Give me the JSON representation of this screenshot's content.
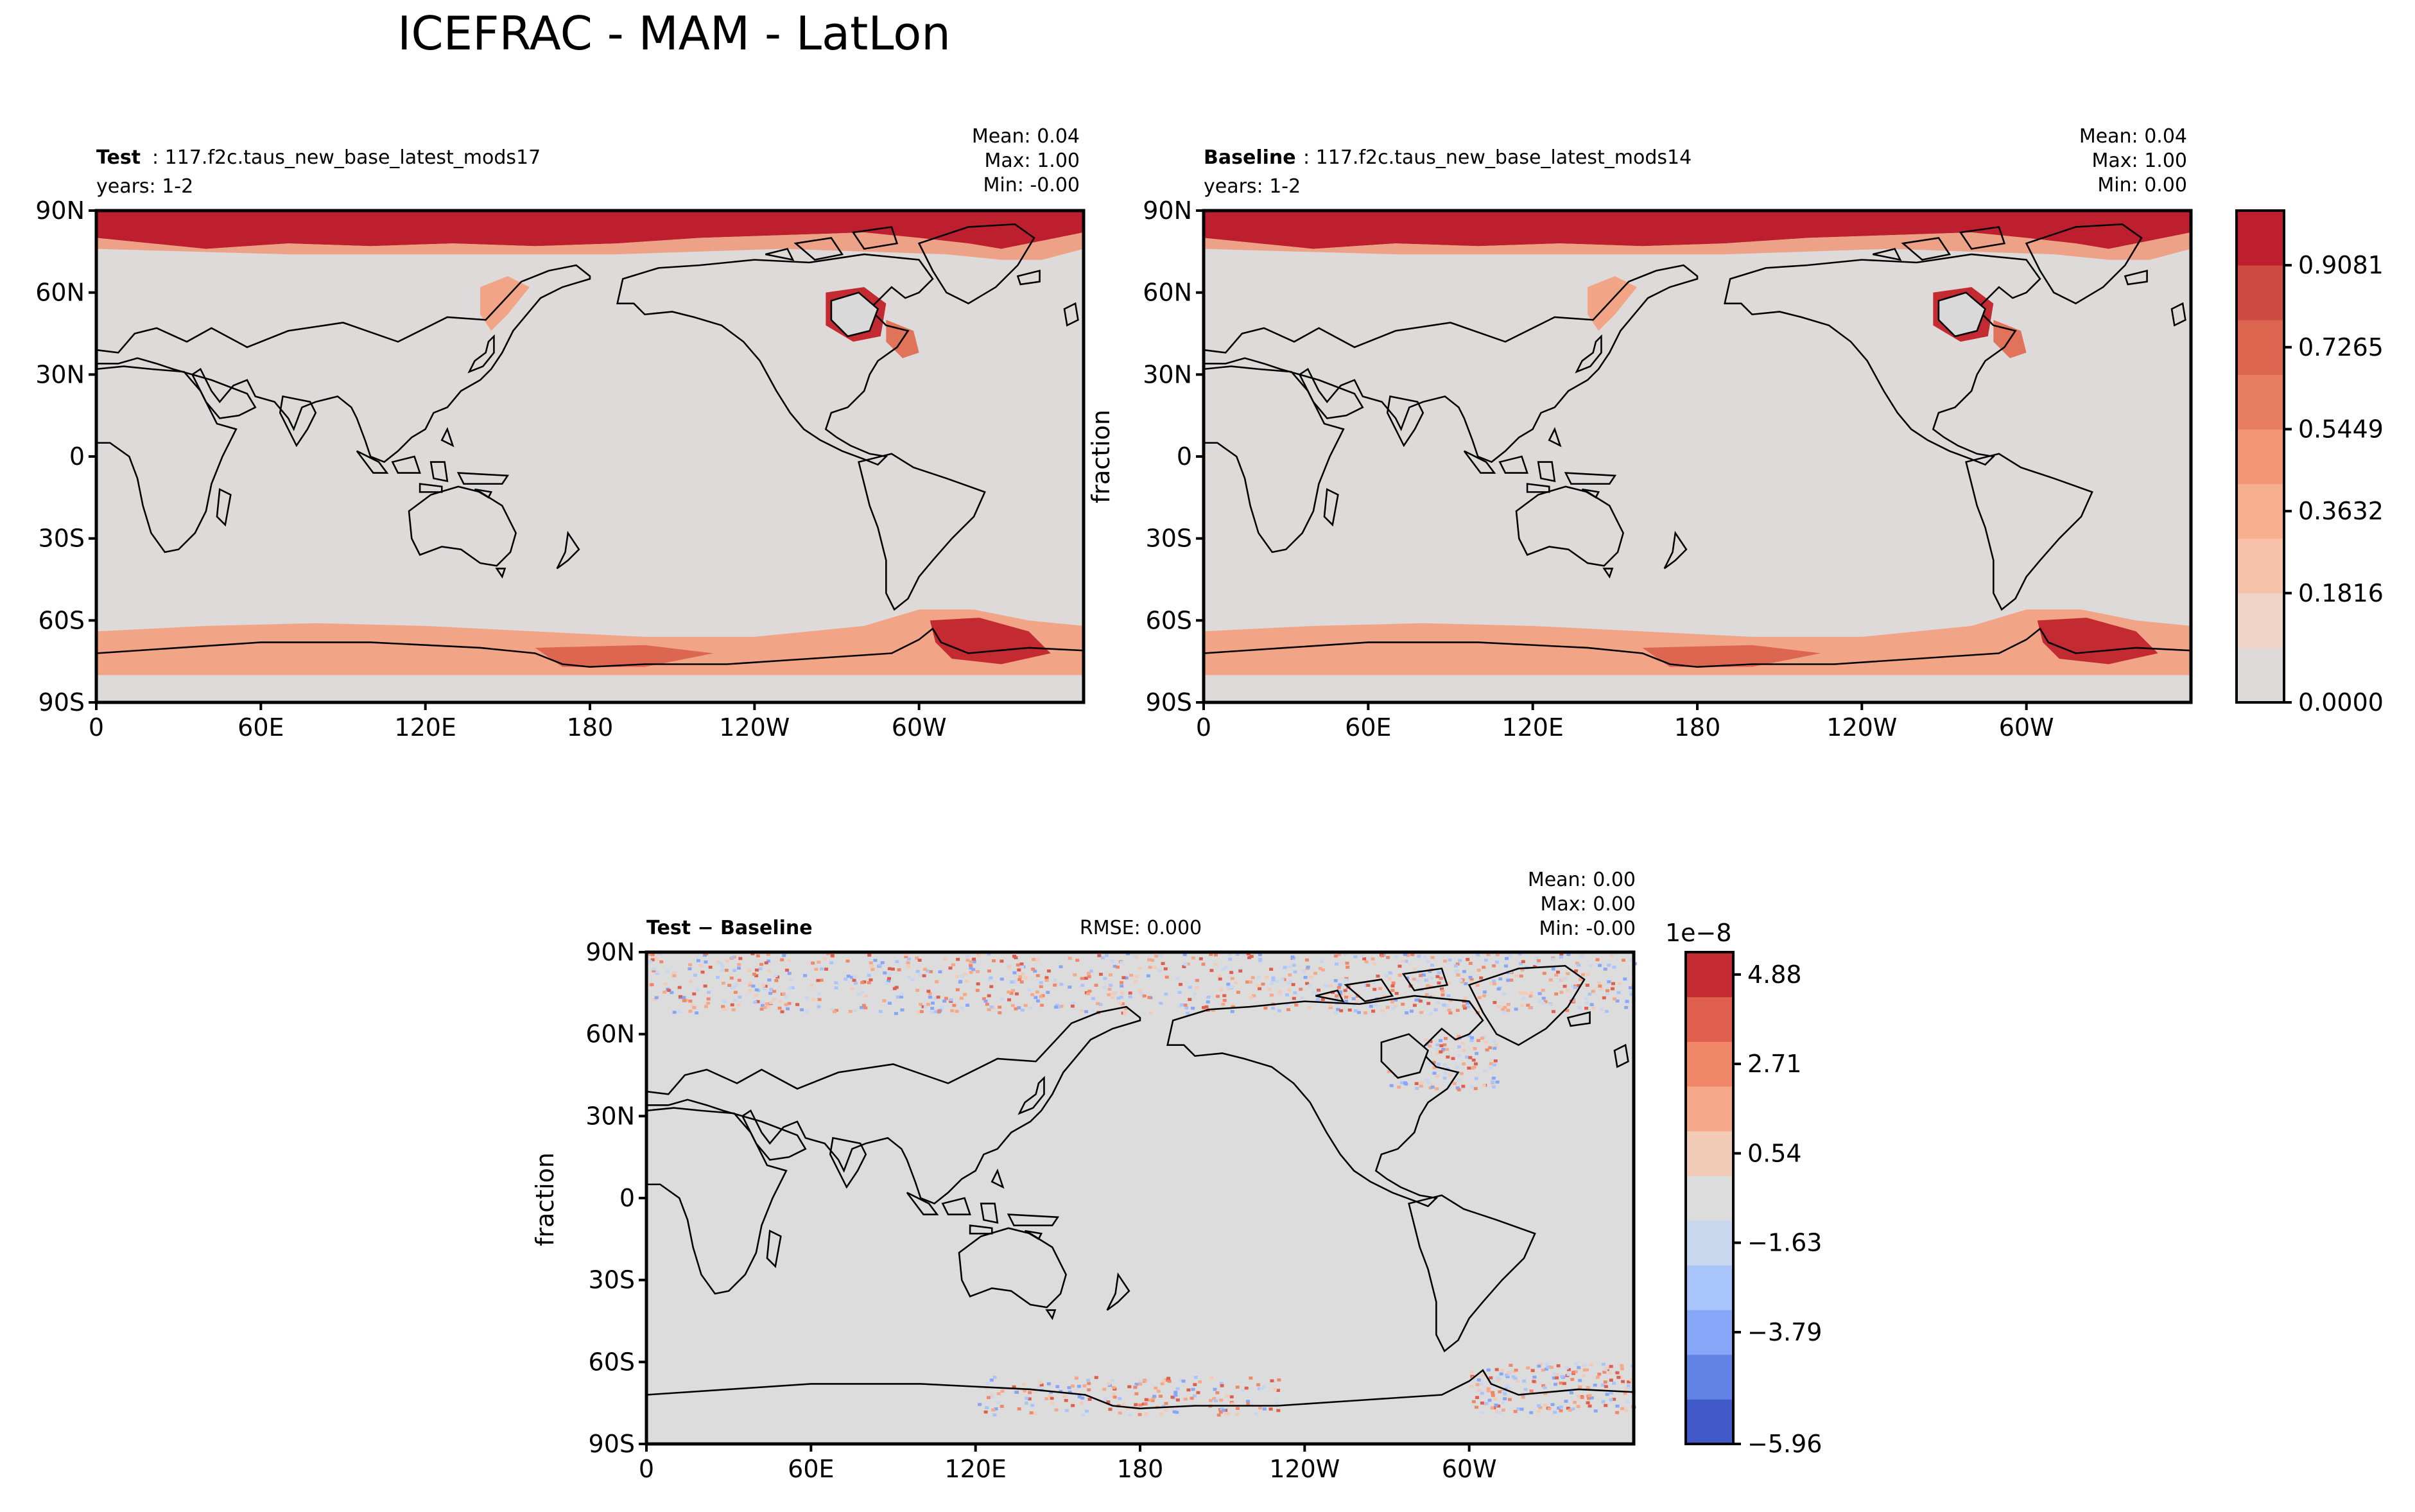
{
  "figure_title": "ICEFRAC - MAM - LatLon",
  "panels": [
    {
      "id": "test",
      "label_bold": "Test",
      "label_rest": ": 117.f2c.taus_new_base_latest_mods17",
      "years": "years: 1-2",
      "stats": [
        "Mean:  0.04",
        "Max:  1.00",
        "Min: -0.00"
      ],
      "ylabel": ""
    },
    {
      "id": "baseline",
      "label_bold": "Baseline",
      "label_rest": ": 117.f2c.taus_new_base_latest_mods14",
      "years": "years: 1-2",
      "stats": [
        "Mean:  0.04",
        "Max:  1.00",
        "Min:  0.00"
      ],
      "ylabel": "fraction"
    },
    {
      "id": "diff",
      "label_bold": "Test − Baseline",
      "label_rest": "",
      "rmse": "RMSE: 0.000",
      "stats": [
        "Mean:  0.00",
        "Max:  0.00",
        "Min: -0.00"
      ],
      "ylabel": "fraction"
    }
  ],
  "lat_ticks": [
    "90N",
    "60N",
    "30N",
    "0",
    "30S",
    "60S",
    "90S"
  ],
  "lon_ticks": [
    "0",
    "60E",
    "120E",
    "180",
    "120W",
    "60W"
  ],
  "colorbar_main": {
    "ticks": [
      "0.9081",
      "0.7265",
      "0.5449",
      "0.3632",
      "0.1816",
      "0.0000"
    ],
    "colors": [
      "#dedad9",
      "#f0d4c8",
      "#f6c2a9",
      "#f7ae8f",
      "#f39676",
      "#e87e61",
      "#dc6650",
      "#cc4c42",
      "#bd1f2e"
    ]
  },
  "colorbar_diff": {
    "exponent": "1e−8",
    "ticks": [
      "4.88",
      "2.71",
      "0.54",
      "−1.63",
      "−3.79",
      "−5.96"
    ],
    "colors": [
      "#4259c9",
      "#6283e6",
      "#86a6f7",
      "#a8c4fb",
      "#c8d6ee",
      "#dcdcdc",
      "#f2cbb7",
      "#f6a98a",
      "#ef8768",
      "#de5f4d",
      "#c42a31"
    ]
  },
  "chart_data": [
    {
      "type": "heatmap",
      "title": "Test: 117.f2c.taus_new_base_latest_mods17",
      "variable": "ICEFRAC",
      "season": "MAM",
      "units": "",
      "xlim": [
        0,
        360
      ],
      "ylim": [
        -90,
        90
      ],
      "mean": 0.04,
      "max": 1.0,
      "min": -0.0,
      "color_levels": [
        0.0,
        0.1816,
        0.3632,
        0.5449,
        0.7265,
        0.9081
      ],
      "features": [
        "Arctic ocean ice fraction ~1.0 poleward of ~75N",
        "Hudson Bay and Labrador ice ~1.0",
        "Southern ocean ice band near 65-75S, max in Weddell Sea"
      ]
    },
    {
      "type": "heatmap",
      "title": "Baseline: 117.f2c.taus_new_base_latest_mods14",
      "variable": "ICEFRAC",
      "season": "MAM",
      "units": "fraction",
      "xlim": [
        0,
        360
      ],
      "ylim": [
        -90,
        90
      ],
      "mean": 0.04,
      "max": 1.0,
      "min": 0.0,
      "color_levels": [
        0.0,
        0.1816,
        0.3632,
        0.5449,
        0.7265,
        0.9081
      ]
    },
    {
      "type": "heatmap",
      "title": "Test − Baseline",
      "units": "fraction",
      "scale": "1e-8",
      "xlim": [
        0,
        360
      ],
      "ylim": [
        -90,
        90
      ],
      "rmse": 0.0,
      "mean": 0.0,
      "max": 0.0,
      "min": -0.0,
      "color_levels": [
        -5.96,
        -3.79,
        -1.63,
        0.54,
        2.71,
        4.88
      ],
      "features": [
        "Noise-level differences (~1e-8) in Arctic ocean north of ~65N",
        "Noise-level differences in Southern ocean near Antarctic coast",
        "Zero elsewhere"
      ]
    }
  ]
}
